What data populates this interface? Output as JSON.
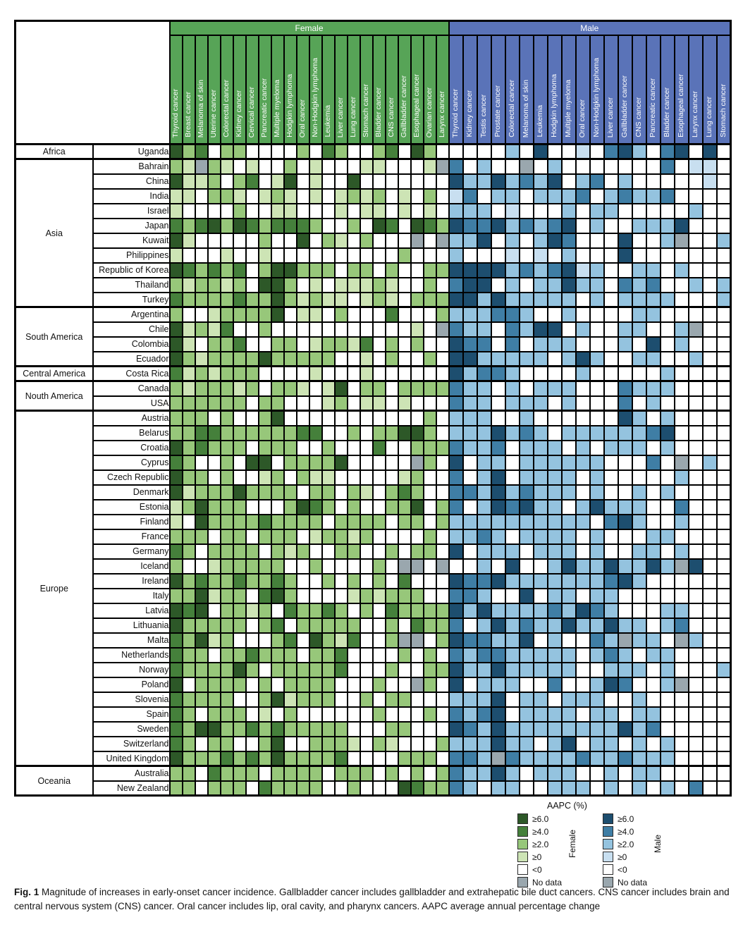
{
  "header": {
    "female_label": "Female",
    "male_label": "Male"
  },
  "caption": {
    "fig_label": "Fig. 1",
    "text": "Magnitude of increases in early-onset cancer incidence. Gallbladder cancer includes gallbladder and extrahepatic bile duct cancers. CNS cancer includes brain and central nervous system (CNS) cancer. Oral cancer includes lip, oral cavity, and pharynx cancers. AAPC average annual percentage change"
  },
  "chart_data": {
    "type": "heatmap",
    "description": "AAPC (%) of early-onset cancer incidence by country and cancer type; codes: 6 = ≥6.0, 4 = ≥4.0, 2 = ≥2.0, 0 = ≥0, n = <0, x = No data",
    "female_columns": [
      "Thyroid cancer",
      "Breast cancer",
      "Melanoma of skin",
      "Uterine cancer",
      "Colorectal cancer",
      "Kidney cancer",
      "Cervical cancer",
      "Pancreatic cancer",
      "Multiple myeloma",
      "Hodgkin lymphoma",
      "Oral cancer",
      "Non-Hodgkin lymphoma",
      "Leukemia",
      "Liver cancer",
      "Lung cancer",
      "Stomach cancer",
      "Bladder cancer",
      "CNS cancer",
      "Gallbladder cancer",
      "Esophageal cancer",
      "Ovarian cancer",
      "Larynx cancer"
    ],
    "male_columns": [
      "Thyroid cancer",
      "Kidney cancer",
      "Testis cancer",
      "Prostate cancer",
      "Colorectal cancer",
      "Melanoma of skin",
      "Leukemia",
      "Hodgkin lymphoma",
      "Multiple myeloma",
      "Oral cancer",
      "Non-Hodgkin lymphoma",
      "Liver cancer",
      "Gallbladder cancer",
      "CNS cancer",
      "Pancreatic cancer",
      "Bladder cancer",
      "Esophageal cancer",
      "Larynx cancer",
      "Lung cancer",
      "Stomach cancer"
    ],
    "legend": {
      "title": "AAPC (%)",
      "levels": [
        {
          "code": "6",
          "label": "≥6.0"
        },
        {
          "code": "4",
          "label": "≥4.0"
        },
        {
          "code": "2",
          "label": "≥2.0"
        },
        {
          "code": "0",
          "label": "≥0"
        },
        {
          "code": "n",
          "label": "<0"
        },
        {
          "code": "x",
          "label": "No data"
        }
      ],
      "female_label": "Female",
      "male_label": "Male"
    },
    "colors": {
      "female": {
        "6": "#2d5828",
        "4": "#45803b",
        "2": "#97c77a",
        "0": "#cde4b5",
        "n": "#ffffff",
        "x": "#9aa7ae"
      },
      "male": {
        "6": "#1d4e6f",
        "4": "#3f7ea5",
        "2": "#94c3df",
        "0": "#c8dff0",
        "n": "#ffffff",
        "x": "#9aa7ae"
      },
      "no_data": "#9aa7ae",
      "female_band": "#57a457",
      "male_band": "#5a73b8",
      "grid": "#000000"
    },
    "regions": [
      {
        "name": "Africa",
        "countries": [
          {
            "name": "Uganda",
            "female": "624n22nnnn2n42nn24n62n",
            "male": "nnnn2n6nn0n462n46n6n"
          }
        ]
      },
      {
        "name": "Asia",
        "countries": [
          {
            "name": "Bahrain",
            "female": "20x20n0nn2n0nnn00nnn0x",
            "male": "4n2nnxn2nnnnnnn4n00n"
          },
          {
            "name": "China",
            "female": "6002n24n06n0nn6nnnnnnn",
            "male": "62262426n24n2nnnnn0n"
          },
          {
            "name": "India",
            "female": "00n220n020n0n0202n0n2n",
            "male": "04n22n2224n24224nnnn"
          },
          {
            "name": "Israel",
            "female": "0nnnn2nn00nnn0n00n0n0n",
            "male": "222n0nnn2n22nnnnn2nn"
          },
          {
            "name": "Japan",
            "female": "424626424442nn2n64n642",
            "male": "644624246n2nn2226nnn"
          },
          {
            "name": "Kuwait",
            "female": "60nnnnn2nn6n20n2nnnxnx",
            "male": "226n2n264nnn6nn2xnn2"
          },
          {
            "name": "Philippines",
            "female": "0nnn0nn0nnnnnnnnnn2nnn",
            "male": "2nnn0n0n2nnn6nnnnnnn"
          },
          {
            "name": "Republic of Korea",
            "female": "642424n266222n22n2nn22",
            "male": "66662424602nn22n2nnn"
          },
          {
            "name": "Thailand",
            "female": "202202n662n0n00020nn2n",
            "male": "466n2n22622n424nn2n2"
          },
          {
            "name": "Turkey",
            "female": "42222422620200n020n222",
            "male": "662622222n2n2222nnn2"
          }
        ]
      },
      {
        "name": "South America",
        "countries": [
          {
            "name": "Argentina",
            "female": "2nn022226n00n2nnn4nnn2",
            "male": "222442nn2nnnn22nnnnn"
          },
          {
            "name": "Chile",
            "female": "60204nn2nnnnnnnnnnn0nx",
            "male": "422n4266n2nn22nn2xnn"
          },
          {
            "name": "Colombia",
            "female": "60n224nn22n02204n2n2nn",
            "male": "644n4n222nnn2n6n2nnn"
          },
          {
            "name": "Ecuador",
            "female": "6202222622222nn0n2nn2n",
            "male": "6622222n262nn22nn2nn"
          }
        ]
      },
      {
        "name": "Central America",
        "countries": [
          {
            "name": "Costa Rica",
            "female": "4020222nnnn0nnn0nnnnnn",
            "male": "62442nnnn2nnnnn2nnnn"
          }
        ]
      },
      {
        "name": "Nouth America",
        "countries": [
          {
            "name": "Canada",
            "female": "2022202n220n06n22n2222",
            "male": "422n2n222nnn4222nnnn"
          },
          {
            "name": "USA",
            "female": "222222n22nnn02n00n0nnn",
            "male": "422n222n2nnn4n2nnnnn"
          }
        ]
      },
      {
        "name": "Europe",
        "countries": [
          {
            "name": "Austria",
            "female": "222n2nn26nnnnnnnnnnn2n",
            "male": "222nn2nnnnnn62n2nnnn"
          },
          {
            "name": "Belarus",
            "female": "224422222244nn2n22662n",
            "male": "2226242n22222246nnnn"
          },
          {
            "name": "Croatia",
            "female": "624222n222nn2nnn4nn222",
            "male": "4224n222n2n222n2nnnn"
          },
          {
            "name": "Cyprus",
            "female": "42nn2n66n22226nnnnnx2n",
            "male": "6n22n222222nnn4nxn2n"
          },
          {
            "name": "Czech Republic",
            "female": "622n2nn02n200nnnnn02nn",
            "male": "4n26n2222n2nnnnn2nnn"
          },
          {
            "name": "Denmark",
            "female": "6022262222n22n20n242nn",
            "male": "442624222n2nn2n2nnnn"
          },
          {
            "name": "Estonia",
            "female": "026222nnn2642n2nn226n2",
            "male": "4n264622n26222nn4nnn"
          },
          {
            "name": "Finland",
            "female": "0n6222242222n2222n22n2",
            "male": "2222222222n462nn2nnn"
          },
          {
            "name": "France",
            "female": "222n22n222n02202nnnn2n",
            "male": "2242n2222n2nnn22nnnn"
          },
          {
            "name": "Germany",
            "female": "42n2222n202nn22nn2n22n",
            "male": "6n222n222n2nn22n2nnn"
          },
          {
            "name": "Iceland",
            "female": "2nn022222nn2nnnn2nxxnx",
            "male": "nn2n6nn262262262x6nn"
          },
          {
            "name": "Ireland",
            "female": "6242242242nn2n2n2n4nnn",
            "male": "64462222222462nnnnnn"
          },
          {
            "name": "Italy",
            "female": "226022n462nnnn020222nn",
            "male": "442nn6n22n22nnnnnnnn"
          },
          {
            "name": "Latvia",
            "female": "646n2202n42242n2n42222",
            "male": "626222242642nnn22nnn"
          },
          {
            "name": "Lithuania",
            "female": "622222n24n22222nn2n422",
            "male": "4n262422622622n24nnn"
          },
          {
            "name": "Malta",
            "female": "42602nnn24n6204nn2xxn2",
            "male": "644226n2nn42x22nx2nn"
          },
          {
            "name": "Netherlands",
            "female": "422n224222n224nnnn2n2n",
            "male": "424422222n242n22nnnn"
          },
          {
            "name": "Norway",
            "female": "4222262n222224nnn2nn22",
            "male": "622622222nn222n2nnn2"
          },
          {
            "name": "Poland",
            "female": "6n2222n2n2222nnn2nnx2n",
            "male": "6n222nn4nn264nn2xnnn"
          },
          {
            "name": "Slovenia",
            "female": "42222nn260222nn2n22nnn",
            "male": "2226n22n222nn2nnnnnn"
          },
          {
            "name": "Spain",
            "female": "42n222n0n2nnnnnn2nnn2n",
            "male": "4246n2222n22n22nnnnn"
          },
          {
            "name": "Sweden",
            "female": "42662242422222nnn22nnn",
            "male": "642622222222624nnnnn"
          },
          {
            "name": "Switzerland",
            "female": "42n22nn26nn2220n20nnn2",
            "male": "222622n26n22n2n2nnnn"
          },
          {
            "name": "United Kingdom",
            "female": "62224242622224nnnn222n",
            "male": "442x422224224222nnnn"
          }
        ]
      },
      {
        "name": "Oceania",
        "countries": [
          {
            "name": "Australia",
            "female": "22n4222n2222n222n2n2n2",
            "male": "42262n222nn2n22nnnnn"
          },
          {
            "name": "New Zealand",
            "female": "22n222n42222nn2nnn6422",
            "male": "42n22nn222n2n2n2n4nn"
          }
        ]
      }
    ]
  }
}
